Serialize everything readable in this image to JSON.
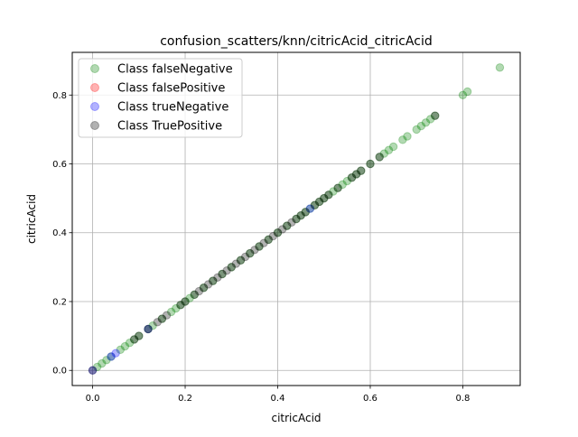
{
  "chart_data": {
    "type": "scatter",
    "title": "confusion_scatters/knn/citricAcid_citricAcid",
    "xlabel": "citricAcid",
    "ylabel": "citricAcid",
    "xlim": [
      -0.044,
      0.924
    ],
    "ylim": [
      -0.044,
      0.924
    ],
    "xticks": [
      0.0,
      0.2,
      0.4,
      0.6,
      0.8
    ],
    "yticks": [
      0.0,
      0.2,
      0.4,
      0.6,
      0.8
    ],
    "xtick_labels": [
      "0.0",
      "0.2",
      "0.4",
      "0.6",
      "0.8"
    ],
    "ytick_labels": [
      "0.0",
      "0.2",
      "0.4",
      "0.6",
      "0.8"
    ],
    "grid": true,
    "legend_position": "top-left",
    "series": [
      {
        "name": "Class falseNegative",
        "color": "#008000",
        "x": [
          0.01,
          0.02,
          0.03,
          0.04,
          0.06,
          0.07,
          0.08,
          0.09,
          0.1,
          0.12,
          0.13,
          0.15,
          0.17,
          0.18,
          0.19,
          0.2,
          0.21,
          0.22,
          0.24,
          0.26,
          0.28,
          0.3,
          0.32,
          0.34,
          0.36,
          0.38,
          0.4,
          0.42,
          0.44,
          0.45,
          0.46,
          0.47,
          0.48,
          0.49,
          0.5,
          0.51,
          0.52,
          0.53,
          0.54,
          0.55,
          0.56,
          0.57,
          0.58,
          0.6,
          0.62,
          0.63,
          0.64,
          0.65,
          0.67,
          0.68,
          0.7,
          0.71,
          0.72,
          0.73,
          0.74,
          0.8,
          0.81,
          0.88
        ],
        "y": [
          0.01,
          0.02,
          0.03,
          0.04,
          0.06,
          0.07,
          0.08,
          0.09,
          0.1,
          0.12,
          0.13,
          0.15,
          0.17,
          0.18,
          0.19,
          0.2,
          0.21,
          0.22,
          0.24,
          0.26,
          0.28,
          0.3,
          0.32,
          0.34,
          0.36,
          0.38,
          0.4,
          0.42,
          0.44,
          0.45,
          0.46,
          0.47,
          0.48,
          0.49,
          0.5,
          0.51,
          0.52,
          0.53,
          0.54,
          0.55,
          0.56,
          0.57,
          0.58,
          0.6,
          0.62,
          0.63,
          0.64,
          0.65,
          0.67,
          0.68,
          0.7,
          0.71,
          0.72,
          0.73,
          0.74,
          0.8,
          0.81,
          0.88
        ]
      },
      {
        "name": "Class falsePositive",
        "color": "#ff0000",
        "x": [],
        "y": []
      },
      {
        "name": "Class trueNegative",
        "color": "#0000ff",
        "x": [
          0.0,
          0.04,
          0.05,
          0.12,
          0.47
        ],
        "y": [
          0.0,
          0.04,
          0.05,
          0.12,
          0.47
        ]
      },
      {
        "name": "Class TruePositive",
        "color": "#000000",
        "x": [
          0.0,
          0.09,
          0.1,
          0.12,
          0.14,
          0.15,
          0.16,
          0.19,
          0.2,
          0.22,
          0.23,
          0.24,
          0.25,
          0.26,
          0.27,
          0.28,
          0.29,
          0.3,
          0.31,
          0.32,
          0.33,
          0.34,
          0.35,
          0.36,
          0.37,
          0.38,
          0.39,
          0.4,
          0.41,
          0.42,
          0.43,
          0.44,
          0.45,
          0.46,
          0.48,
          0.49,
          0.5,
          0.51,
          0.53,
          0.56,
          0.57,
          0.58,
          0.6,
          0.62,
          0.74
        ],
        "y": [
          0.0,
          0.09,
          0.1,
          0.12,
          0.14,
          0.15,
          0.16,
          0.19,
          0.2,
          0.22,
          0.23,
          0.24,
          0.25,
          0.26,
          0.27,
          0.28,
          0.29,
          0.3,
          0.31,
          0.32,
          0.33,
          0.34,
          0.35,
          0.36,
          0.37,
          0.38,
          0.39,
          0.4,
          0.41,
          0.42,
          0.43,
          0.44,
          0.45,
          0.46,
          0.48,
          0.49,
          0.5,
          0.51,
          0.53,
          0.56,
          0.57,
          0.58,
          0.6,
          0.62,
          0.74
        ]
      }
    ]
  }
}
